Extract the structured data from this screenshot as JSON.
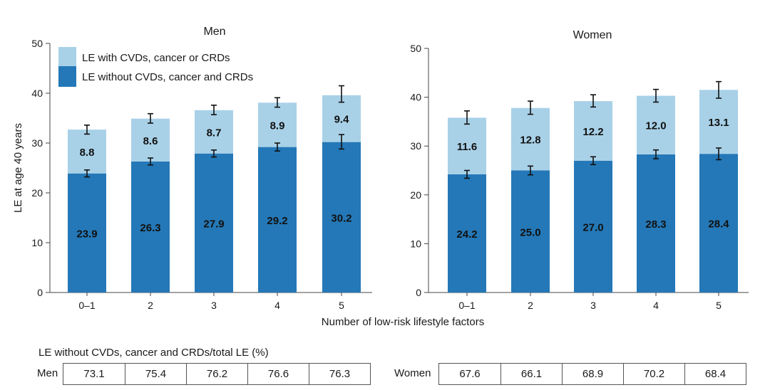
{
  "chart_data": [
    {
      "type": "bar",
      "stacked": true,
      "title": "Men",
      "ylabel": "LE at age 40 years",
      "ylim": [
        0,
        50
      ],
      "yticks": [
        0,
        10,
        20,
        30,
        40,
        50
      ],
      "categories": [
        "0–1",
        "2",
        "3",
        "4",
        "5"
      ],
      "legend_position": "top-left",
      "series": [
        {
          "name": "LE without CVDs, cancer and CRDs",
          "color": "#2478b7",
          "values": [
            23.9,
            26.3,
            27.9,
            29.2,
            30.2
          ],
          "labels": [
            "23.9",
            "26.3",
            "27.9",
            "29.2",
            "30.2"
          ],
          "err": [
            [
              23.2,
              24.6
            ],
            [
              25.6,
              27.0
            ],
            [
              27.2,
              28.6
            ],
            [
              28.4,
              30.0
            ],
            [
              28.8,
              31.7
            ]
          ]
        },
        {
          "name": "LE with CVDs, cancer or CRDs",
          "color": "#a8d1e8",
          "values": [
            8.8,
            8.6,
            8.7,
            8.9,
            9.4
          ],
          "labels": [
            "8.8",
            "8.6",
            "8.7",
            "8.9",
            "9.4"
          ],
          "err": [
            [
              31.8,
              33.6
            ],
            [
              34.0,
              35.9
            ],
            [
              35.7,
              37.6
            ],
            [
              37.2,
              39.1
            ],
            [
              38.2,
              41.5
            ]
          ]
        }
      ]
    },
    {
      "type": "bar",
      "stacked": true,
      "title": "Women",
      "ylabel": "",
      "ylim": [
        0,
        50
      ],
      "yticks": [
        0,
        10,
        20,
        30,
        40,
        50
      ],
      "categories": [
        "0–1",
        "2",
        "3",
        "4",
        "5"
      ],
      "series": [
        {
          "name": "LE without CVDs, cancer and CRDs",
          "color": "#2478b7",
          "values": [
            24.2,
            25.0,
            27.0,
            28.3,
            28.4
          ],
          "labels": [
            "24.2",
            "25.0",
            "27.0",
            "28.3",
            "28.4"
          ],
          "err": [
            [
              23.4,
              25.0
            ],
            [
              24.1,
              25.9
            ],
            [
              26.2,
              27.8
            ],
            [
              27.4,
              29.2
            ],
            [
              27.2,
              29.6
            ]
          ]
        },
        {
          "name": "LE with CVDs, cancer or CRDs",
          "color": "#a8d1e8",
          "values": [
            11.6,
            12.8,
            12.2,
            12.0,
            13.1
          ],
          "labels": [
            "11.6",
            "12.8",
            "12.2",
            "12.0",
            "13.1"
          ],
          "err": [
            [
              34.5,
              37.2
            ],
            [
              36.5,
              39.2
            ],
            [
              38.0,
              40.5
            ],
            [
              39.0,
              41.6
            ],
            [
              39.8,
              43.2
            ]
          ]
        }
      ]
    }
  ],
  "xlabel": "Number of low-risk lifestyle factors",
  "table": {
    "title": "LE without CVDs, cancer and CRDs/total LE (%)",
    "men_label": "Men",
    "men_values": [
      "73.1",
      "75.4",
      "76.2",
      "76.6",
      "76.3"
    ],
    "women_label": "Women",
    "women_values": [
      "67.6",
      "66.1",
      "68.9",
      "70.2",
      "68.4"
    ]
  }
}
